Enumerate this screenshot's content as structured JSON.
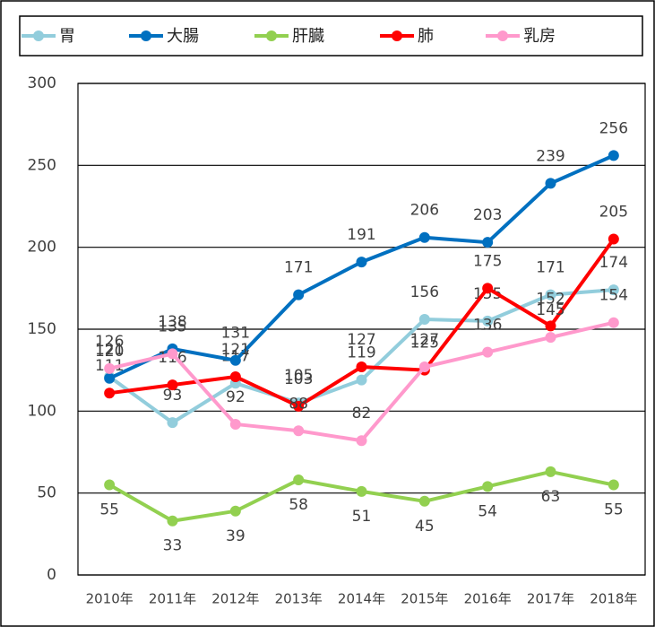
{
  "chart_data": {
    "type": "line",
    "categories": [
      "2010年",
      "2011年",
      "2012年",
      "2013年",
      "2014年",
      "2015年",
      "2016年",
      "2017年",
      "2018年"
    ],
    "series": [
      {
        "name": "胃",
        "color": "#92cddc",
        "values": [
          121,
          93,
          117,
          105,
          119,
          156,
          155,
          171,
          174
        ]
      },
      {
        "name": "大腸",
        "color": "#0070c0",
        "values": [
          120,
          138,
          131,
          171,
          191,
          206,
          203,
          239,
          256
        ]
      },
      {
        "name": "肝臓",
        "color": "#92d050",
        "values": [
          55,
          33,
          39,
          58,
          51,
          45,
          54,
          63,
          55
        ]
      },
      {
        "name": "肺",
        "color": "#ff0000",
        "values": [
          111,
          116,
          121,
          103,
          127,
          125,
          175,
          152,
          205
        ]
      },
      {
        "name": "乳房",
        "color": "#ff99cc",
        "values": [
          126,
          135,
          92,
          88,
          82,
          127,
          136,
          145,
          154
        ]
      }
    ],
    "ylim": [
      0,
      300
    ],
    "yticks": [
      0,
      50,
      100,
      150,
      200,
      250,
      300
    ],
    "grid": true,
    "legend": "top"
  }
}
